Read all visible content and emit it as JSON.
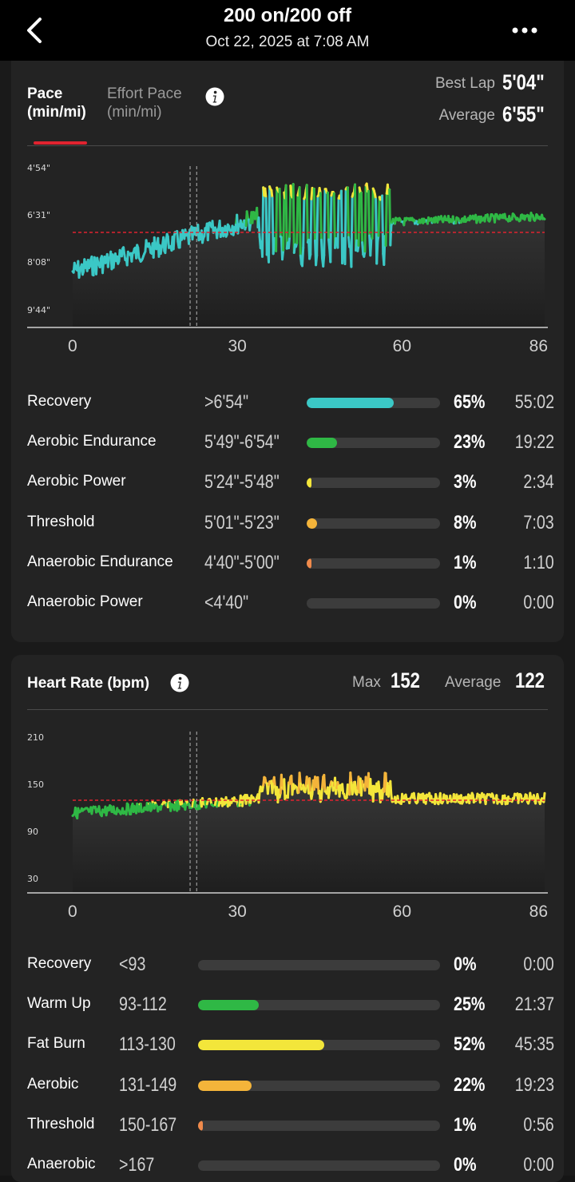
{
  "header": {
    "title": "200 on/200 off",
    "subtitle": "Oct 22, 2025 at 7:08 AM"
  },
  "pace": {
    "tabs": [
      {
        "label_1": "Pace",
        "label_2": "(min/mi)"
      },
      {
        "label_1": "Effort Pace",
        "label_2": "(min/mi)"
      }
    ],
    "best_lap_label": "Best Lap",
    "best_lap_value": "5'04\"",
    "average_label": "Average",
    "average_value": "6'55\"",
    "chart_data": {
      "type": "line",
      "y_ticks": [
        "4'54\"",
        "6'31\"",
        "8'08\"",
        "9'44\""
      ],
      "x_ticks": [
        "0",
        "30",
        "60",
        "86"
      ],
      "xlim": [
        0,
        86
      ],
      "average_line": "6'55\"",
      "colors": {
        "recovery": "#3bc8c6",
        "endurance": "#2fb845",
        "power": "#f3e63a",
        "threshold": "#f4b43a",
        "anaerobic": "#f08a4b"
      }
    },
    "zones": [
      {
        "name": "Recovery",
        "range": ">6'54\"",
        "pct": "65%",
        "fraction": 0.65,
        "time": "55:02",
        "color": "#3bc8c6"
      },
      {
        "name": "Aerobic Endurance",
        "range": "5'49\"-6'54\"",
        "pct": "23%",
        "fraction": 0.23,
        "time": "19:22",
        "color": "#2fb845"
      },
      {
        "name": "Aerobic Power",
        "range": "5'24\"-5'48\"",
        "pct": "3%",
        "fraction": 0.03,
        "time": "2:34",
        "color": "#f3e63a"
      },
      {
        "name": "Threshold",
        "range": "5'01\"-5'23\"",
        "pct": "8%",
        "fraction": 0.08,
        "time": "7:03",
        "color": "#f4b43a"
      },
      {
        "name": "Anaerobic Endurance",
        "range": "4'40\"-5'00\"",
        "pct": "1%",
        "fraction": 0.01,
        "time": "1:10",
        "color": "#f08a4b"
      },
      {
        "name": "Anaerobic Power",
        "range": "<4'40\"",
        "pct": "0%",
        "fraction": 0.0,
        "time": "0:00",
        "color": "#e0232f"
      }
    ]
  },
  "heart": {
    "title": "Heart Rate (bpm)",
    "max_label": "Max",
    "max_value": "152",
    "average_label": "Average",
    "average_value": "122",
    "chart_data": {
      "type": "line",
      "y_ticks": [
        "210",
        "150",
        "90",
        "30"
      ],
      "x_ticks": [
        "0",
        "30",
        "60",
        "86"
      ],
      "xlim": [
        0,
        86
      ],
      "ylim": [
        30,
        210
      ],
      "average_line": 122
    },
    "zones": [
      {
        "name": "Recovery",
        "range": "<93",
        "pct": "0%",
        "fraction": 0.0,
        "time": "0:00",
        "color": "#3bc8c6"
      },
      {
        "name": "Warm Up",
        "range": "93-112",
        "pct": "25%",
        "fraction": 0.25,
        "time": "21:37",
        "color": "#2fb845"
      },
      {
        "name": "Fat Burn",
        "range": "113-130",
        "pct": "52%",
        "fraction": 0.52,
        "time": "45:35",
        "color": "#f3e63a"
      },
      {
        "name": "Aerobic",
        "range": "131-149",
        "pct": "22%",
        "fraction": 0.22,
        "time": "19:23",
        "color": "#f4b43a"
      },
      {
        "name": "Threshold",
        "range": "150-167",
        "pct": "1%",
        "fraction": 0.01,
        "time": "0:56",
        "color": "#f08a4b"
      },
      {
        "name": "Anaerobic",
        "range": ">167",
        "pct": "0%",
        "fraction": 0.0,
        "time": "0:00",
        "color": "#e0232f"
      }
    ]
  }
}
